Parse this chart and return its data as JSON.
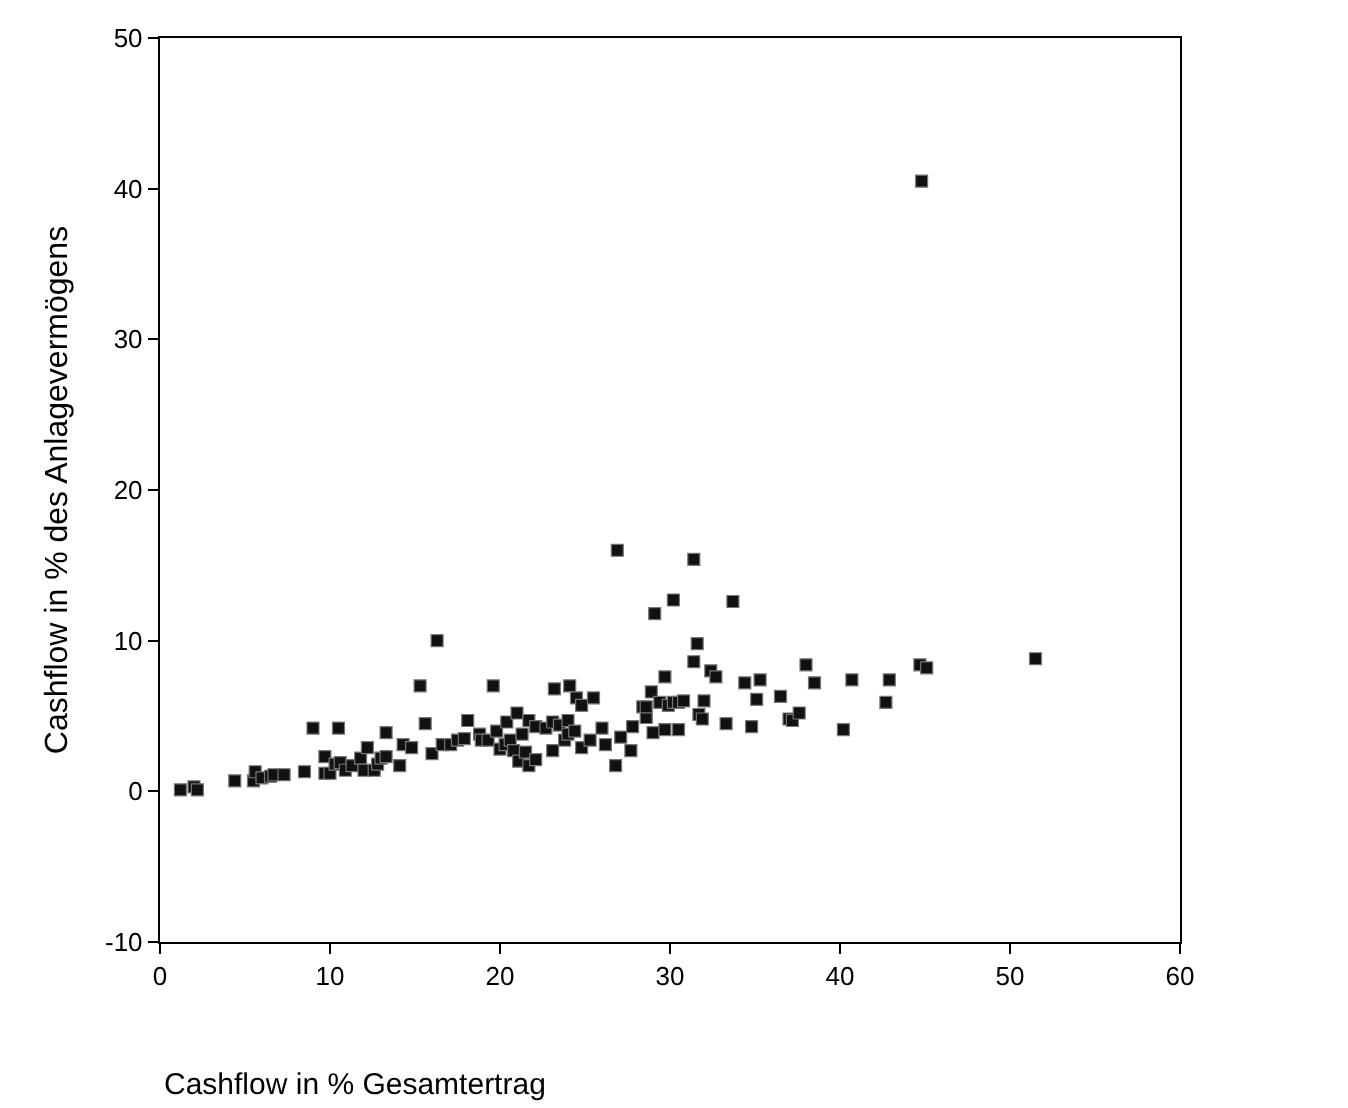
{
  "chart_data": {
    "type": "scatter",
    "xlabel": "Cashflow in % Gesamtertrag",
    "ylabel": "Cashflow in % des Anlagevermögens",
    "xlim": [
      0,
      60
    ],
    "xticks": [
      0,
      10,
      20,
      30,
      40,
      50,
      60
    ],
    "ylim": [
      -10,
      50
    ],
    "yticks": [
      -10,
      0,
      10,
      20,
      30,
      40,
      50
    ],
    "marker": "square",
    "series": [
      {
        "color": "#111111",
        "x": [
          1.2,
          2.0,
          2.2,
          4.4,
          5.5,
          5.6,
          6.0,
          6.5,
          6.7,
          7.3,
          8.5,
          9.0,
          9.7,
          9.7,
          10.0,
          10.3,
          10.6,
          10.5,
          10.9,
          11.3,
          11.8,
          12.0,
          12.2,
          12.6,
          12.8,
          13.0,
          13.3,
          13.3,
          14.1,
          14.3,
          14.8,
          15.3,
          15.6,
          16.0,
          16.3,
          16.6,
          17.1,
          17.5,
          17.9,
          18.1,
          18.8,
          18.9,
          19.3,
          19.6,
          19.8,
          20.0,
          20.3,
          20.4,
          20.6,
          20.8,
          21.0,
          21.1,
          21.3,
          21.5,
          21.7,
          21.7,
          22.1,
          22.1,
          22.7,
          23.1,
          23.1,
          23.2,
          23.5,
          23.8,
          24.0,
          24.1,
          24.0,
          24.4,
          24.5,
          24.8,
          24.8,
          25.3,
          25.5,
          26.0,
          26.2,
          26.8,
          26.9,
          27.1,
          27.7,
          27.8,
          28.4,
          28.6,
          28.6,
          28.9,
          29.0,
          29.1,
          29.4,
          29.7,
          29.7,
          29.9,
          30.2,
          30.2,
          30.5,
          30.5,
          30.8,
          31.4,
          31.4,
          31.6,
          31.7,
          31.9,
          32.0,
          32.4,
          32.7,
          33.3,
          33.7,
          34.4,
          35.3,
          34.8,
          35.1,
          36.5,
          37.0,
          37.2,
          37.6,
          38.0,
          38.5,
          40.2,
          40.7,
          42.7,
          42.9,
          44.8,
          44.7,
          45.1,
          51.5
        ],
        "values": [
          0.1,
          0.3,
          0.1,
          0.7,
          0.7,
          1.3,
          0.9,
          1.0,
          1.1,
          1.1,
          1.3,
          4.2,
          2.3,
          1.2,
          1.2,
          1.8,
          1.9,
          4.2,
          1.4,
          1.7,
          2.2,
          1.4,
          2.9,
          1.4,
          1.8,
          2.2,
          2.3,
          3.9,
          1.7,
          3.1,
          2.9,
          7.0,
          4.5,
          2.5,
          10.0,
          3.1,
          3.1,
          3.4,
          3.5,
          4.7,
          3.8,
          3.4,
          3.4,
          7.0,
          4.0,
          2.8,
          3.1,
          4.6,
          3.4,
          2.7,
          5.2,
          2.0,
          3.8,
          2.6,
          1.7,
          4.7,
          2.1,
          4.3,
          4.2,
          2.7,
          4.6,
          6.8,
          4.4,
          3.4,
          3.8,
          7.0,
          4.7,
          4.0,
          6.2,
          5.7,
          2.9,
          3.4,
          6.2,
          4.2,
          3.1,
          1.7,
          16.0,
          3.6,
          2.7,
          4.3,
          5.6,
          4.9,
          5.6,
          6.6,
          3.9,
          11.8,
          5.9,
          4.1,
          7.6,
          5.7,
          12.7,
          5.9,
          4.1,
          5.9,
          6.0,
          15.4,
          8.6,
          9.8,
          5.1,
          4.8,
          6.0,
          8.0,
          7.6,
          4.5,
          12.6,
          7.2,
          7.4,
          4.3,
          6.1,
          6.3,
          4.8,
          4.7,
          5.2,
          8.4,
          7.2,
          4.1,
          7.4,
          5.9,
          7.4,
          40.5,
          8.4,
          8.2,
          8.8
        ]
      }
    ]
  }
}
